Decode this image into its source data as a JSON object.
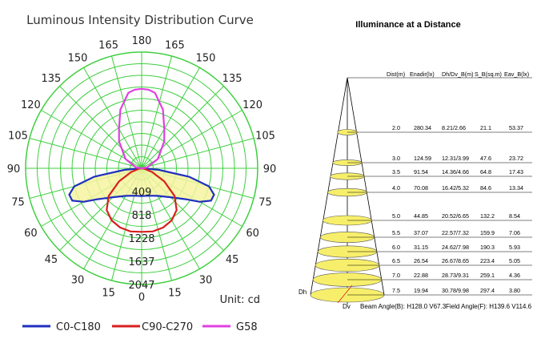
{
  "left_chart": {
    "title": "Luminous Intensity Distribution Curve",
    "unit_label": "Unit: cd",
    "legend": [
      {
        "label": "C0-C180",
        "color": "#1f2fbf"
      },
      {
        "label": "C90-C270",
        "color": "#d81f1f"
      },
      {
        "label": "G58",
        "color": "#e040e0"
      }
    ],
    "angle_labels_left": [
      "180",
      "150",
      "135",
      "120",
      "105",
      "90",
      "75",
      "60",
      "45",
      "30",
      "15",
      "0"
    ],
    "angle_labels_right": [
      "165",
      "150",
      "135",
      "120",
      "105",
      "90",
      "75",
      "60",
      "45",
      "30",
      "15"
    ],
    "angle_label_top_left": "165",
    "ring_labels": [
      "409",
      "818",
      "1228",
      "1637",
      "2047"
    ]
  },
  "chart_data": {
    "type": "polar",
    "title": "Luminous Intensity Distribution Curve",
    "unit": "cd",
    "radial_max": 2047,
    "radial_ticks": [
      409,
      818,
      1228,
      1637,
      2047
    ],
    "angle_ticks_deg": [
      0,
      15,
      30,
      45,
      60,
      75,
      90,
      105,
      120,
      135,
      150,
      165,
      180
    ],
    "series": [
      {
        "name": "C0-C180",
        "color": "#1f2fbf",
        "angles": [
          0,
          15,
          30,
          45,
          55,
          60,
          65,
          70,
          75,
          80,
          85,
          90
        ],
        "values": [
          490,
          500,
          560,
          720,
          950,
          1180,
          1350,
          1360,
          1230,
          850,
          300,
          0
        ]
      },
      {
        "name": "C90-C270",
        "color": "#d81f1f",
        "angles": [
          0,
          10,
          20,
          30,
          40,
          50,
          60,
          70,
          80,
          90
        ],
        "values": [
          1120,
          1130,
          1110,
          1060,
          960,
          760,
          460,
          200,
          50,
          0
        ]
      },
      {
        "name": "G58",
        "color": "#e040e0",
        "angles": [
          90,
          100,
          120,
          140,
          150,
          160,
          170,
          175,
          180
        ],
        "values": [
          0,
          100,
          330,
          620,
          800,
          1100,
          1350,
          1390,
          1400
        ]
      }
    ]
  },
  "right_chart": {
    "title": "Illuminance at a Distance",
    "columns": [
      "Dist(m)",
      "Enadir(lx)",
      "Dh/Dv_B(m)",
      "S_B(sq.m)",
      "Eav_B(lx)"
    ],
    "rows": [
      [
        "2.0",
        "280.34",
        "8.21/2.66",
        "21.1",
        "53.37"
      ],
      [
        "3.0",
        "124.59",
        "12.31/3.99",
        "47.6",
        "23.72"
      ],
      [
        "3.5",
        "91.54",
        "14.36/4.66",
        "64.8",
        "17.43"
      ],
      [
        "4.0",
        "70.08",
        "16.42/5.32",
        "84.6",
        "13.34"
      ],
      [
        "5.0",
        "44.85",
        "20.52/6.65",
        "132.2",
        "8.54"
      ],
      [
        "5.5",
        "37.07",
        "22.57/7.32",
        "159.9",
        "7.06"
      ],
      [
        "6.0",
        "31.15",
        "24.62/7.98",
        "190.3",
        "5.93"
      ],
      [
        "6.5",
        "26.54",
        "26.67/8.65",
        "223.4",
        "5.05"
      ],
      [
        "7.0",
        "22.88",
        "28.73/9.31",
        "259.1",
        "4.36"
      ],
      [
        "7.5",
        "19.94",
        "30.78/9.98",
        "297.4",
        "3.80"
      ]
    ],
    "dh_label": "Dh",
    "dv_label": "Dv",
    "beam_angle": "Beam Angle(B): H128.0 V67.3",
    "field_angle": "Field Angle(F): H139.6 V114.6"
  }
}
